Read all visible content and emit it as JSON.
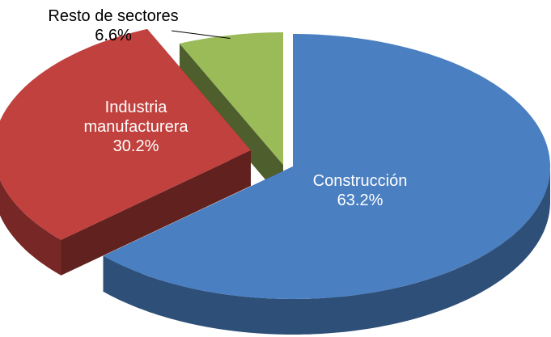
{
  "chart_data": {
    "type": "pie",
    "categories": [
      "Construcción",
      "Industria manufacturera",
      "Resto de sectores"
    ],
    "values": [
      63.2,
      30.2,
      6.6
    ],
    "value_labels": [
      "63.2%",
      "30.2%",
      "6.6%"
    ],
    "colors": [
      "#4a7fc1",
      "#c0413d",
      "#9bbb59"
    ]
  }
}
